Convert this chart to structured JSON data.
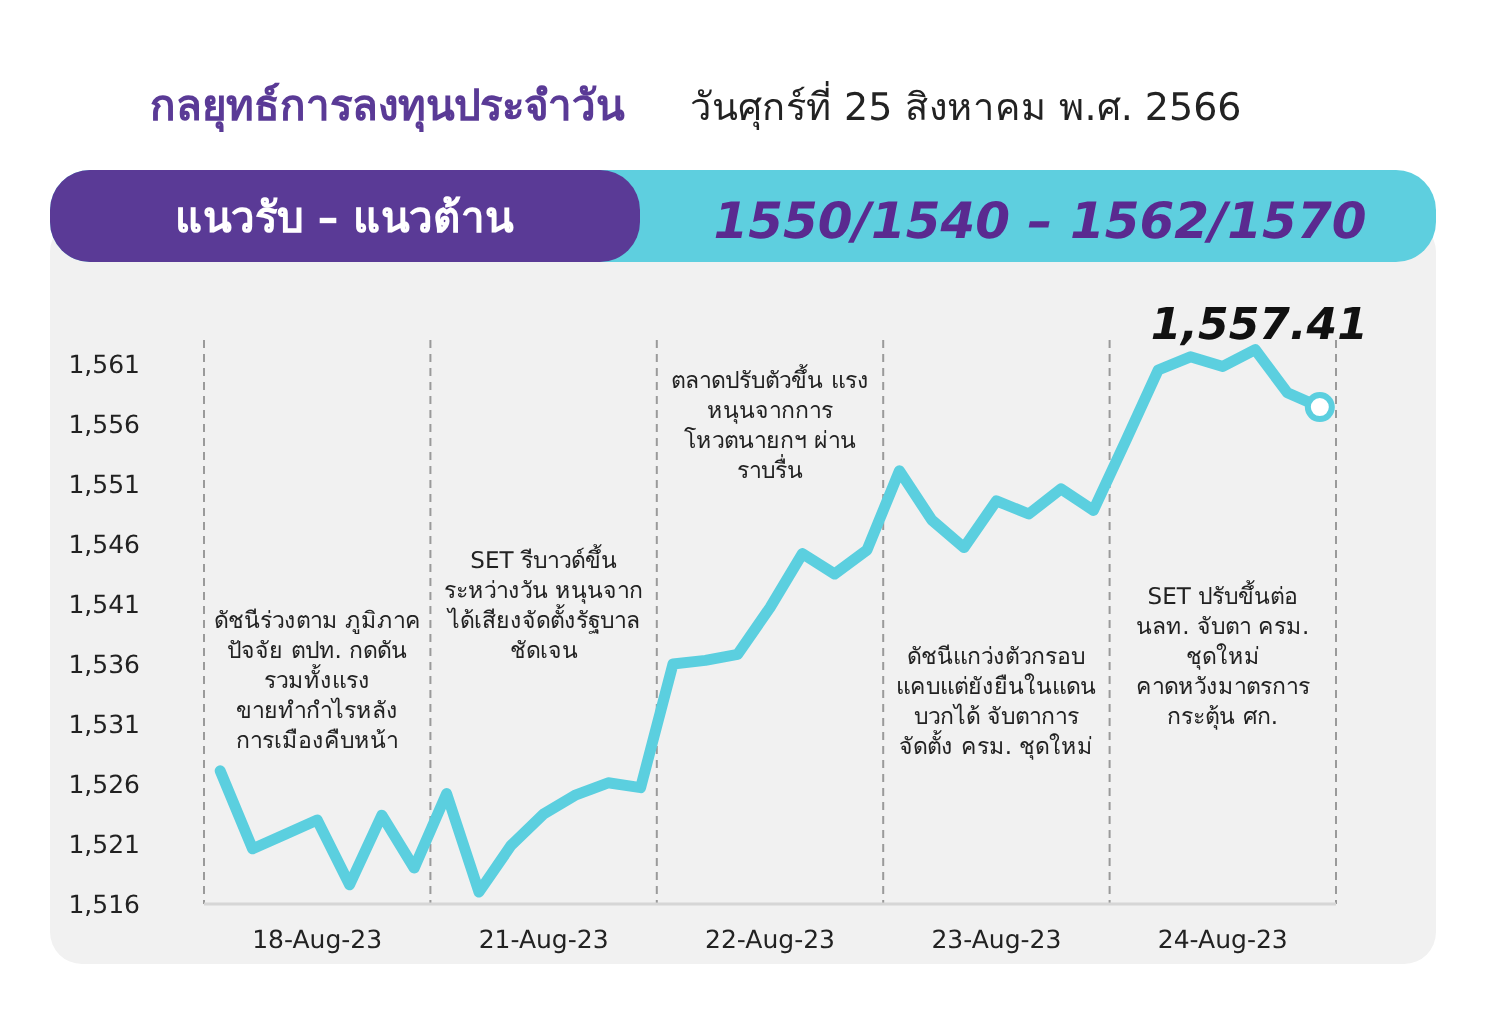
{
  "chart_data": {
    "type": "line",
    "title": "กลยุทธ์การลงทุนประจำวัน",
    "subtitle": "วันศุกร์ที่ 25 สิงหาคม พ.ศ. 2566",
    "categories": [
      null,
      null,
      null,
      "18-Aug-23",
      null,
      null,
      null,
      null,
      null,
      null,
      "21-Aug-23",
      null,
      null,
      null,
      null,
      null,
      null,
      "22-Aug-23",
      null,
      null,
      null,
      null,
      null,
      null,
      "23-Aug-23",
      null,
      null,
      null,
      null,
      null,
      null,
      "24-Aug-23",
      null,
      null,
      null
    ],
    "series": [
      {
        "color": "#5bcfdf",
        "values": [
          1527.1,
          1520.6,
          1521.8,
          1523.0,
          1517.6,
          1523.4,
          1519.0,
          1525.2,
          1517.0,
          1520.9,
          1523.5,
          1525.1,
          1526.1,
          1525.7,
          1536.0,
          1536.3,
          1536.8,
          1540.7,
          1545.2,
          1543.5,
          1545.5,
          1552.1,
          1548.0,
          1545.7,
          1549.6,
          1548.5,
          1550.6,
          1548.8,
          1554.6,
          1560.5,
          1561.6,
          1560.8,
          1562.2,
          1558.6,
          1557.41
        ],
        "value_labels": [
          null,
          null,
          null,
          null,
          null,
          null,
          null,
          null,
          null,
          null,
          null,
          null,
          null,
          null,
          null,
          null,
          null,
          null,
          null,
          null,
          null,
          null,
          null,
          null,
          null,
          null,
          null,
          null,
          null,
          null,
          null,
          null,
          null,
          null,
          "1,557.41"
        ]
      }
    ],
    "ylim": [
      1516,
      1563
    ],
    "yticks": [
      {
        "value": 1516,
        "label": "1,516"
      },
      {
        "value": 1521,
        "label": "1,521"
      },
      {
        "value": 1526,
        "label": "1,526"
      },
      {
        "value": 1531,
        "label": "1,531"
      },
      {
        "value": 1536,
        "label": "1,536"
      },
      {
        "value": 1541,
        "label": "1,541"
      },
      {
        "value": 1546,
        "label": "1,546"
      },
      {
        "value": 1551,
        "label": "1,551"
      },
      {
        "value": 1556,
        "label": "1,556"
      },
      {
        "value": 1561,
        "label": "1,561"
      }
    ],
    "annotations": [
      "แนวรับ – แนวต้าน",
      "1550/1540 – 1562/1570",
      "ดัชนีร่วงตาม ภูมิภาค ปัจจัย ตปท. กดดัน รวมทั้งแรง ขายทำกำไรหลัง การเมืองคืบหน้า",
      "SET รีบาวด์ขึ้น ระหว่างวัน หนุนจาก ได้เสียงจัดตั้งรัฐบาล ชัดเจน",
      "ตลาดปรับตัวขึ้น แรง หนุนจากการ โหวตนายกฯ ผ่าน ราบรื่น",
      "ดัชนีแกว่งตัวกรอบ แคบแต่ยังยืนในแดน บวกได้ จับตาการ จัดตั้ง ครม. ชุดใหม่",
      "SET ปรับขึ้นต่อ นลท. จับตา ครม. ชุดใหม่ คาดหวังมาตรการ กระตุ้น ศก."
    ],
    "grid": false,
    "marker": "none",
    "line_style": "solid"
  }
}
